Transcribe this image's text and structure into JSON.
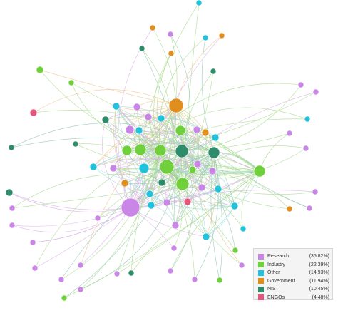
{
  "legend": {
    "items": [
      {
        "label": "Research",
        "pct": "(35.82%)",
        "color": "#c986e6"
      },
      {
        "label": "Industry",
        "pct": "(22.39%)",
        "color": "#6fd03c"
      },
      {
        "label": "Other",
        "pct": "(14.93%)",
        "color": "#23c2dc"
      },
      {
        "label": "Government",
        "pct": "(11.94%)",
        "color": "#e08e1e"
      },
      {
        "label": "NIS",
        "pct": "(10.45%)",
        "color": "#2d8c6a"
      },
      {
        "label": "ENGOs",
        "pct": "(4.48%)",
        "color": "#e4557a"
      }
    ]
  },
  "edge_colors": {
    "Research": "#d9b0e8",
    "Industry": "#a6d98a",
    "Other": "#9fd8e4",
    "Government": "#ecc38c",
    "NIS": "#8fc4b0",
    "ENGOs": "#eea6b8"
  }
}
